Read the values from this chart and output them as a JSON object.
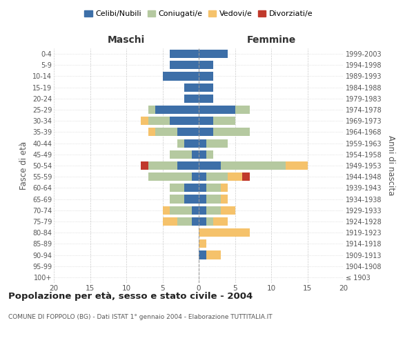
{
  "age_groups": [
    "100+",
    "95-99",
    "90-94",
    "85-89",
    "80-84",
    "75-79",
    "70-74",
    "65-69",
    "60-64",
    "55-59",
    "50-54",
    "45-49",
    "40-44",
    "35-39",
    "30-34",
    "25-29",
    "20-24",
    "15-19",
    "10-14",
    "5-9",
    "0-4"
  ],
  "birth_years": [
    "≤ 1903",
    "1904-1908",
    "1909-1913",
    "1914-1918",
    "1919-1923",
    "1924-1928",
    "1929-1933",
    "1934-1938",
    "1939-1943",
    "1944-1948",
    "1949-1953",
    "1954-1958",
    "1959-1963",
    "1964-1968",
    "1969-1973",
    "1974-1978",
    "1979-1983",
    "1984-1988",
    "1989-1993",
    "1994-1998",
    "1999-2003"
  ],
  "colors": {
    "celibi": "#3d6fa8",
    "coniugati": "#b5c9a0",
    "vedovi": "#f5c26b",
    "divorziati": "#c0392b"
  },
  "maschi": {
    "celibi": [
      0,
      0,
      0,
      0,
      0,
      1,
      1,
      2,
      2,
      1,
      3,
      1,
      2,
      3,
      4,
      6,
      2,
      2,
      5,
      4,
      4
    ],
    "coniugati": [
      0,
      0,
      0,
      0,
      0,
      2,
      3,
      2,
      2,
      6,
      4,
      3,
      1,
      3,
      3,
      1,
      0,
      0,
      0,
      0,
      0
    ],
    "vedovi": [
      0,
      0,
      0,
      0,
      0,
      2,
      1,
      0,
      0,
      0,
      0,
      0,
      0,
      1,
      1,
      0,
      0,
      0,
      0,
      0,
      0
    ],
    "divorziati": [
      0,
      0,
      0,
      0,
      0,
      0,
      0,
      0,
      0,
      0,
      1,
      0,
      0,
      0,
      0,
      0,
      0,
      0,
      0,
      0,
      0
    ]
  },
  "femmine": {
    "celibi": [
      0,
      0,
      1,
      0,
      0,
      1,
      1,
      1,
      1,
      1,
      3,
      1,
      1,
      2,
      2,
      5,
      2,
      2,
      2,
      2,
      4
    ],
    "coniugati": [
      0,
      0,
      0,
      0,
      0,
      1,
      2,
      2,
      2,
      3,
      9,
      1,
      3,
      5,
      3,
      2,
      0,
      0,
      0,
      0,
      0
    ],
    "vedovi": [
      0,
      0,
      2,
      1,
      7,
      2,
      2,
      1,
      1,
      2,
      3,
      0,
      0,
      0,
      0,
      0,
      0,
      0,
      0,
      0,
      0
    ],
    "divorziati": [
      0,
      0,
      0,
      0,
      0,
      0,
      0,
      0,
      0,
      1,
      0,
      0,
      0,
      0,
      0,
      0,
      0,
      0,
      0,
      0,
      0
    ]
  },
  "xlim": 20,
  "title": "Popolazione per età, sesso e stato civile - 2004",
  "subtitle": "COMUNE DI FOPPOLO (BG) - Dati ISTAT 1° gennaio 2004 - Elaborazione TUTTITALIA.IT",
  "ylabel_left": "Fasce di età",
  "ylabel_right": "Anni di nascita",
  "xlabel_maschi": "Maschi",
  "xlabel_femmine": "Femmine",
  "legend_labels": [
    "Celibi/Nubili",
    "Coniugati/e",
    "Vedovi/e",
    "Divorziati/e"
  ],
  "background_color": "#ffffff",
  "grid_color": "#cccccc"
}
